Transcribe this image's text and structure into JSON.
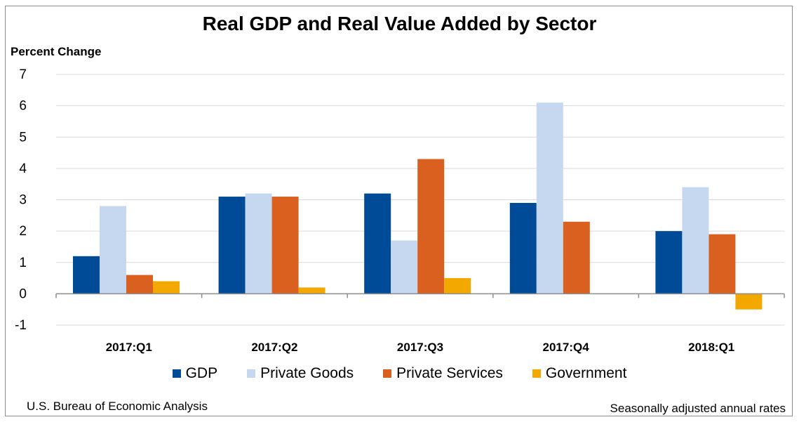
{
  "title": "Real GDP and Real Value Added by Sector",
  "footer": {
    "source": "U.S. Bureau of Economic Analysis",
    "note": "Seasonally adjusted annual rates"
  },
  "colors": {
    "gdp": "#004b98",
    "private_goods": "#c5d8ef",
    "private_services": "#d9601f",
    "government": "#f3a800"
  },
  "chart_data": {
    "type": "bar",
    "title": "Real GDP and Real Value Added by Sector",
    "ylabel": "Percent Change",
    "xlabel": "",
    "categories": [
      "2017:Q1",
      "2017:Q2",
      "2017:Q3",
      "2017:Q4",
      "2018:Q1"
    ],
    "series": [
      {
        "name": "GDP",
        "values": [
          1.2,
          3.1,
          3.2,
          2.9,
          2.0
        ]
      },
      {
        "name": "Private Goods",
        "values": [
          2.8,
          3.2,
          1.7,
          6.1,
          3.4
        ]
      },
      {
        "name": "Private Services",
        "values": [
          0.6,
          3.1,
          4.3,
          2.3,
          1.9
        ]
      },
      {
        "name": "Government",
        "values": [
          0.4,
          0.2,
          0.5,
          0.0,
          -0.5
        ]
      }
    ],
    "ylim": [
      -1,
      7
    ],
    "yticks": [
      -1,
      0,
      1,
      2,
      3,
      4,
      5,
      6,
      7
    ],
    "grid": true,
    "legend_position": "bottom"
  }
}
